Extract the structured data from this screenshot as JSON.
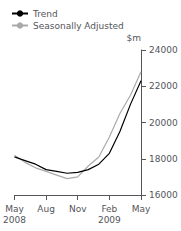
{
  "chart_data": {
    "type": "line",
    "categories": [
      "May\n2008",
      null,
      null,
      "Aug",
      null,
      null,
      "Nov",
      null,
      null,
      "Feb\n2009",
      null,
      null,
      "May"
    ],
    "series": [
      {
        "name": "Seasonally Adjusted",
        "color": "#aaaaaa",
        "values": [
          18200,
          17800,
          17500,
          17300,
          17100,
          16900,
          17000,
          17600,
          18100,
          19200,
          20500,
          21500,
          22800
        ]
      },
      {
        "name": "Trend",
        "color": "#000000",
        "values": [
          18100,
          17900,
          17700,
          17400,
          17300,
          17200,
          17250,
          17400,
          17700,
          18300,
          19500,
          21000,
          22300
        ]
      }
    ],
    "ylabel": "$m",
    "ylim": [
      16000,
      24000
    ],
    "yticks": [
      16000,
      18000,
      20000,
      22000,
      24000
    ],
    "grid": false,
    "legend": "upper left"
  }
}
